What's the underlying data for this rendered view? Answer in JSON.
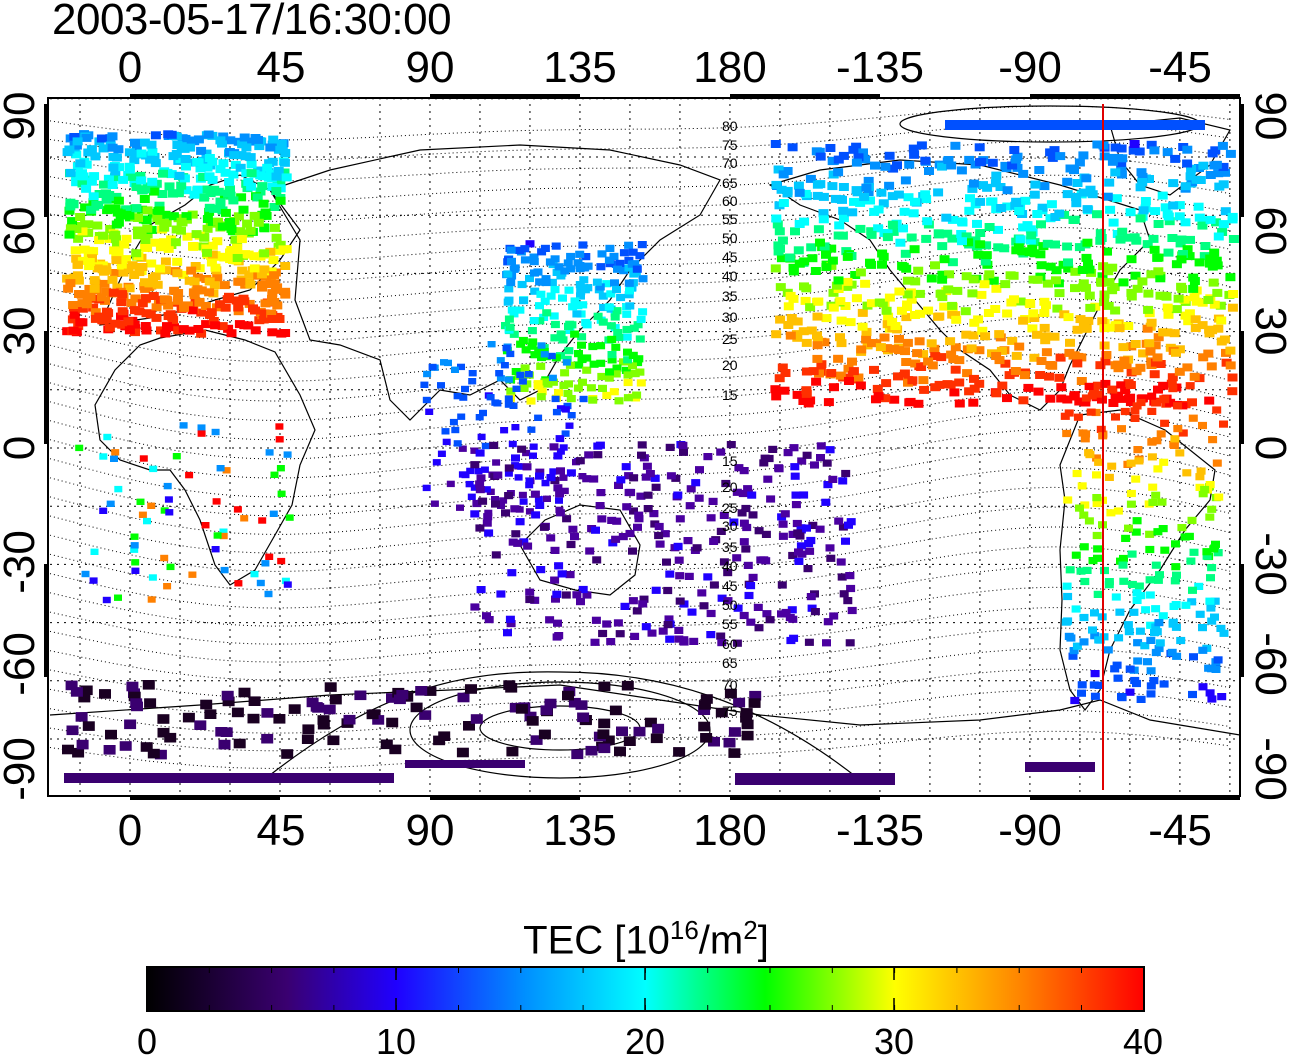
{
  "title": "2003-05-17/16:30:00",
  "map": {
    "top_longitude_labels": [
      "0",
      "45",
      "90",
      "135",
      "180",
      "-135",
      "-90",
      "-45"
    ],
    "bottom_longitude_labels": [
      "0",
      "45",
      "90",
      "135",
      "180",
      "-135",
      "-90",
      "-45"
    ],
    "left_latitude_labels": [
      "90",
      "60",
      "30",
      "0",
      "-30",
      "-60",
      "-90"
    ],
    "right_latitude_labels": [
      "90",
      "60",
      "30",
      "0",
      "-30",
      "-60",
      "-90"
    ],
    "contour_labels_north": [
      "80",
      "75",
      "70",
      "65",
      "60",
      "55",
      "50",
      "45",
      "40",
      "35",
      "30",
      "25",
      "20",
      "15"
    ],
    "contour_labels_south": [
      "15",
      "20",
      "25",
      "30",
      "35",
      "40",
      "45",
      "50",
      "55",
      "60",
      "65",
      "70",
      "75"
    ],
    "marker_color": "#e00000"
  },
  "colorbar": {
    "title": "TEC  [10",
    "title_sup1": "16",
    "title_mid": "/m",
    "title_sup2": "2",
    "title_end": "]",
    "min": 0,
    "max": 40,
    "tick_labels": [
      "0",
      "10",
      "20",
      "30",
      "40"
    ],
    "colors": [
      "#000000",
      "#4b0082",
      "#0000ff",
      "#00ffff",
      "#00ff00",
      "#ffff00",
      "#ff8000",
      "#ff0000"
    ]
  }
}
